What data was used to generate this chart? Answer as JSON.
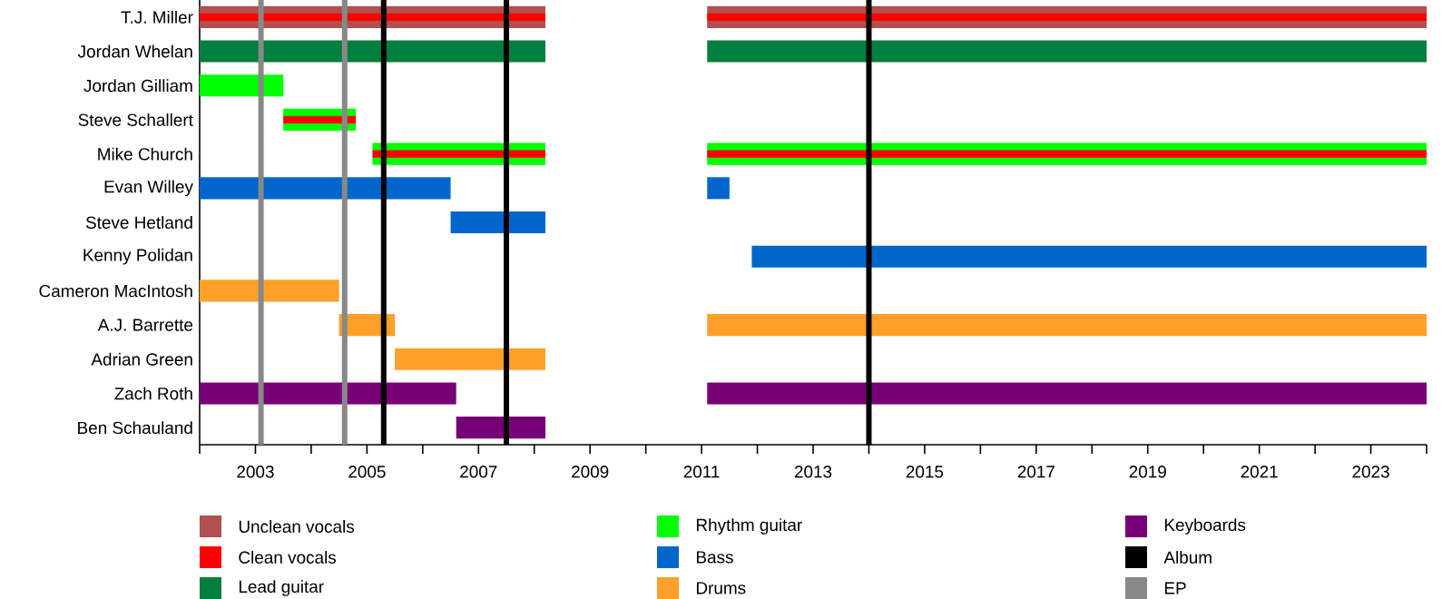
{
  "chart_data": {
    "type": "bar",
    "orientation": "horizontal",
    "categories": [
      "T.J. Miller",
      "Jordan Whelan",
      "Jordan Gilliam",
      "Steve Schallert",
      "Mike Church",
      "Evan Willey",
      "Steve Hetland",
      "Kenny Polidan",
      "Cameron MacIntosh",
      "A.J. Barrette",
      "Adrian Green",
      "Zach Roth",
      "Ben Schauland"
    ],
    "series": [
      {
        "name": "Unclean vocals",
        "color": "#b05050",
        "base": [
          2002,
          null,
          null,
          null,
          null,
          null,
          null,
          null,
          null,
          null,
          null,
          null,
          null
        ],
        "values": [
          6.2,
          null,
          null,
          null,
          null,
          null,
          null,
          null,
          null,
          null,
          null,
          null,
          null
        ]
      },
      {
        "name": "Clean vocals",
        "color": "#ff0000",
        "base": [
          2002,
          null,
          null,
          2003.5,
          2005.1,
          null,
          null,
          null,
          null,
          null,
          null,
          null,
          null
        ],
        "values": [
          6.2,
          null,
          null,
          1.3,
          3.1,
          null,
          null,
          null,
          null,
          null,
          null,
          null,
          null
        ]
      },
      {
        "name": "Lead guitar",
        "color": "#00803c",
        "base": [
          null,
          2002,
          null,
          null,
          null,
          null,
          null,
          null,
          null,
          null,
          null,
          null,
          null
        ],
        "values": [
          null,
          6.2,
          null,
          null,
          null,
          null,
          null,
          null,
          null,
          null,
          null,
          null,
          null
        ]
      },
      {
        "name": "Rhythm guitar",
        "color": "#00ff00",
        "base": [
          null,
          null,
          2002,
          2003.5,
          2005.1,
          null,
          null,
          null,
          null,
          null,
          null,
          null,
          null
        ],
        "values": [
          null,
          null,
          1.5,
          1.3,
          3.1,
          null,
          null,
          null,
          null,
          null,
          null,
          null,
          null
        ]
      },
      {
        "name": "Bass",
        "color": "#0066cc",
        "base": [
          null,
          null,
          null,
          null,
          null,
          2002,
          2006.5,
          2011.9,
          null,
          null,
          null,
          null,
          null
        ],
        "values": [
          null,
          null,
          null,
          null,
          null,
          4.5,
          1.7,
          12.1,
          null,
          null,
          null,
          null,
          null
        ]
      },
      {
        "name": "Drums",
        "color": "#ffa02a",
        "base": [
          null,
          null,
          null,
          null,
          null,
          null,
          null,
          null,
          2002,
          2004.5,
          2005.5,
          null,
          null
        ],
        "values": [
          null,
          null,
          null,
          null,
          null,
          null,
          null,
          null,
          2.5,
          1.0,
          2.7,
          null,
          null
        ]
      },
      {
        "name": "Keyboards",
        "color": "#770077",
        "base": [
          null,
          null,
          null,
          null,
          null,
          null,
          null,
          null,
          null,
          null,
          null,
          2002,
          2006.6
        ],
        "values": [
          null,
          null,
          null,
          null,
          null,
          null,
          null,
          null,
          null,
          null,
          null,
          4.6,
          1.6
        ]
      },
      {
        "color": "#b05050",
        "base": [
          2011.1,
          null,
          null,
          null,
          null,
          null,
          null,
          null,
          null,
          null,
          null,
          null,
          null
        ],
        "values": [
          12.9,
          null,
          null,
          null,
          null,
          null,
          null,
          null,
          null,
          null,
          null,
          null,
          null
        ]
      },
      {
        "color": "#ff0000",
        "base": [
          2011.1,
          null,
          null,
          null,
          2011.1,
          null,
          null,
          null,
          null,
          null,
          null,
          null,
          null
        ],
        "values": [
          12.9,
          null,
          null,
          null,
          12.9,
          null,
          null,
          null,
          null,
          null,
          null,
          null,
          null
        ]
      },
      {
        "color": "#00803c",
        "base": [
          null,
          2011.1,
          null,
          null,
          null,
          null,
          null,
          null,
          null,
          null,
          null,
          null,
          null
        ],
        "values": [
          null,
          12.9,
          null,
          null,
          null,
          null,
          null,
          null,
          null,
          null,
          null,
          null,
          null
        ]
      },
      {
        "color": "#00ff00",
        "base": [
          null,
          null,
          null,
          null,
          2011.1,
          null,
          null,
          null,
          null,
          null,
          null,
          null,
          null
        ],
        "values": [
          null,
          null,
          null,
          null,
          12.9,
          null,
          null,
          null,
          null,
          null,
          null,
          null,
          null
        ]
      },
      {
        "color": "#0066cc",
        "base": [
          null,
          null,
          null,
          null,
          null,
          2011.1,
          null,
          null,
          null,
          null,
          null,
          null,
          null
        ],
        "values": [
          null,
          null,
          null,
          null,
          null,
          0.4,
          null,
          null,
          null,
          null,
          null,
          null,
          null
        ]
      },
      {
        "color": "#ffa02a",
        "base": [
          null,
          null,
          null,
          null,
          null,
          null,
          null,
          null,
          null,
          2011.1,
          null,
          null,
          null
        ],
        "values": [
          null,
          null,
          null,
          null,
          null,
          null,
          null,
          null,
          null,
          12.9,
          null,
          null,
          null
        ]
      },
      {
        "color": "#770077",
        "base": [
          null,
          null,
          null,
          null,
          null,
          null,
          null,
          null,
          null,
          null,
          null,
          2011.1,
          null
        ],
        "values": [
          null,
          null,
          null,
          null,
          null,
          null,
          null,
          null,
          null,
          null,
          null,
          12.9,
          null
        ]
      }
    ],
    "xlim": [
      2002,
      2024
    ],
    "xticks": [
      {
        "value": 2002,
        "label": null
      },
      2003,
      {
        "value": 2004,
        "label": null
      },
      2005,
      {
        "value": 2006,
        "label": null
      },
      2007,
      {
        "value": 2008,
        "label": null
      },
      2009,
      {
        "value": 2010,
        "label": null
      },
      2011,
      {
        "value": 2012,
        "label": null
      },
      2013,
      {
        "value": 2014,
        "label": null
      },
      2015,
      {
        "value": 2016,
        "label": null
      },
      2017,
      {
        "value": 2018,
        "label": null
      },
      2019,
      {
        "value": 2020,
        "label": null
      },
      2021,
      {
        "value": 2022,
        "label": null
      },
      2023,
      {
        "value": 2024,
        "label": null
      }
    ],
    "ref_lines": [
      {
        "axis": "x",
        "value": 2005.3,
        "label": "Album",
        "color": "#000000"
      },
      {
        "axis": "x",
        "value": 2007.5,
        "color": "#000000"
      },
      {
        "axis": "x",
        "value": 2014.0,
        "color": "#000000"
      },
      {
        "axis": "x",
        "value": 2003.1,
        "label": "EP",
        "color": "#888888"
      },
      {
        "axis": "x",
        "value": 2004.6,
        "color": "#888888"
      }
    ],
    "legend": "bottom"
  }
}
